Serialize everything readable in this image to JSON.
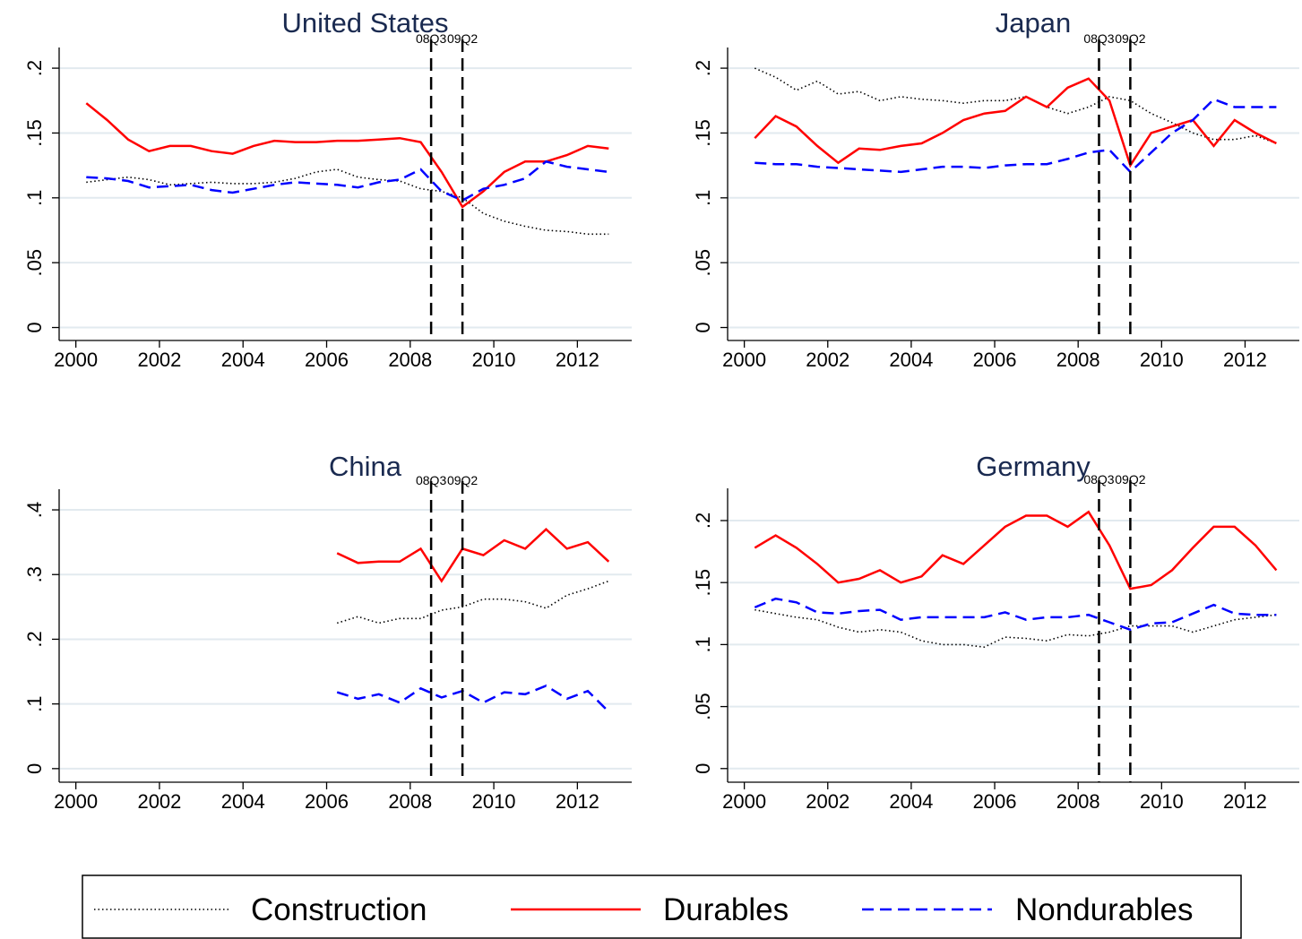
{
  "chart_data": [
    {
      "type": "line",
      "title": "United States",
      "x": [
        2000.25,
        2000.75,
        2001.25,
        2001.75,
        2002.25,
        2002.75,
        2003.25,
        2003.75,
        2004.25,
        2004.75,
        2005.25,
        2005.75,
        2006.25,
        2006.75,
        2007.25,
        2007.75,
        2008.25,
        2008.75,
        2009.25,
        2009.75,
        2010.25,
        2010.75,
        2011.25,
        2011.75,
        2012.25,
        2012.75
      ],
      "series": [
        {
          "name": "Construction",
          "color": "#000000",
          "dash": "dotted",
          "values": [
            0.112,
            0.114,
            0.116,
            0.114,
            0.11,
            0.111,
            0.112,
            0.111,
            0.111,
            0.112,
            0.115,
            0.12,
            0.122,
            0.116,
            0.114,
            0.113,
            0.107,
            0.105,
            0.1,
            0.088,
            0.082,
            0.078,
            0.075,
            0.074,
            0.072,
            0.072
          ]
        },
        {
          "name": "Durables",
          "color": "#ff0000",
          "dash": "solid",
          "values": [
            0.173,
            0.16,
            0.145,
            0.136,
            0.14,
            0.14,
            0.136,
            0.134,
            0.14,
            0.144,
            0.143,
            0.143,
            0.144,
            0.144,
            0.145,
            0.146,
            0.143,
            0.12,
            0.093,
            0.105,
            0.12,
            0.128,
            0.128,
            0.133,
            0.14,
            0.138
          ]
        },
        {
          "name": "Nondurables",
          "color": "#0000ff",
          "dash": "dashed",
          "values": [
            0.116,
            0.115,
            0.113,
            0.108,
            0.109,
            0.11,
            0.106,
            0.104,
            0.107,
            0.11,
            0.112,
            0.111,
            0.11,
            0.108,
            0.112,
            0.114,
            0.122,
            0.105,
            0.098,
            0.107,
            0.11,
            0.115,
            0.128,
            0.124,
            0.122,
            0.12
          ]
        }
      ],
      "xlim": [
        1999.6,
        2013.3
      ],
      "ylim": [
        -0.01,
        0.2125
      ],
      "xticks": [
        2000,
        2002,
        2004,
        2006,
        2008,
        2010,
        2012
      ],
      "yticks": [
        0,
        {
          "value": 0.05,
          "label": ".05"
        },
        {
          "value": 0.1,
          "label": ".1"
        },
        {
          "value": 0.15,
          "label": ".15"
        },
        {
          "value": 0.2,
          "label": ".2"
        }
      ],
      "grid": true,
      "annotations": [
        {
          "x": 2008.5,
          "label": "08Q3"
        },
        {
          "x": 2009.25,
          "label": "09Q2"
        }
      ]
    },
    {
      "type": "line",
      "title": "Japan",
      "x": [
        2000.25,
        2000.75,
        2001.25,
        2001.75,
        2002.25,
        2002.75,
        2003.25,
        2003.75,
        2004.25,
        2004.75,
        2005.25,
        2005.75,
        2006.25,
        2006.75,
        2007.25,
        2007.75,
        2008.25,
        2008.75,
        2009.25,
        2009.75,
        2010.25,
        2010.75,
        2011.25,
        2011.75,
        2012.25,
        2012.75
      ],
      "series": [
        {
          "name": "Construction",
          "color": "#000000",
          "dash": "dotted",
          "values": [
            0.2,
            0.193,
            0.183,
            0.19,
            0.18,
            0.182,
            0.175,
            0.178,
            0.176,
            0.175,
            0.173,
            0.175,
            0.175,
            0.178,
            0.17,
            0.165,
            0.17,
            0.178,
            0.175,
            0.165,
            0.158,
            0.15,
            0.145,
            0.145,
            0.148,
            0.142
          ]
        },
        {
          "name": "Durables",
          "color": "#ff0000",
          "dash": "solid",
          "values": [
            0.146,
            0.163,
            0.155,
            0.14,
            0.127,
            0.138,
            0.137,
            0.14,
            0.142,
            0.15,
            0.16,
            0.165,
            0.167,
            0.178,
            0.17,
            0.185,
            0.192,
            0.175,
            0.125,
            0.15,
            0.155,
            0.16,
            0.14,
            0.16,
            0.15,
            0.142
          ]
        },
        {
          "name": "Nondurables",
          "color": "#0000ff",
          "dash": "dashed",
          "values": [
            0.127,
            0.126,
            0.126,
            0.124,
            0.123,
            0.122,
            0.121,
            0.12,
            0.122,
            0.124,
            0.124,
            0.123,
            0.125,
            0.126,
            0.126,
            0.13,
            0.135,
            0.137,
            0.12,
            0.135,
            0.15,
            0.16,
            0.176,
            0.17,
            0.17,
            0.17
          ]
        }
      ],
      "xlim": [
        1999.6,
        2013.3
      ],
      "ylim": [
        -0.01,
        0.2125
      ],
      "xticks": [
        2000,
        2002,
        2004,
        2006,
        2008,
        2010,
        2012
      ],
      "yticks": [
        0,
        {
          "value": 0.05,
          "label": ".05"
        },
        {
          "value": 0.1,
          "label": ".1"
        },
        {
          "value": 0.15,
          "label": ".15"
        },
        {
          "value": 0.2,
          "label": ".2"
        }
      ],
      "grid": true,
      "annotations": [
        {
          "x": 2008.5,
          "label": "08Q3"
        },
        {
          "x": 2009.25,
          "label": "09Q2"
        }
      ]
    },
    {
      "type": "line",
      "title": "China",
      "x": [
        2000.25,
        2000.75,
        2001.25,
        2001.75,
        2002.25,
        2002.75,
        2003.25,
        2003.75,
        2004.25,
        2004.75,
        2005.25,
        2005.75,
        2006.25,
        2006.75,
        2007.25,
        2007.75,
        2008.25,
        2008.75,
        2009.25,
        2009.75,
        2010.25,
        2010.75,
        2011.25,
        2011.75,
        2012.25,
        2012.75
      ],
      "series": [
        {
          "name": "Construction",
          "color": "#000000",
          "dash": "dotted",
          "values": [
            null,
            null,
            null,
            null,
            null,
            null,
            null,
            null,
            null,
            null,
            null,
            null,
            0.225,
            0.235,
            0.225,
            0.232,
            0.232,
            0.245,
            0.25,
            0.262,
            0.262,
            0.258,
            0.248,
            0.268,
            0.278,
            0.29
          ]
        },
        {
          "name": "Durables",
          "color": "#ff0000",
          "dash": "solid",
          "values": [
            null,
            null,
            null,
            null,
            null,
            null,
            null,
            null,
            null,
            null,
            null,
            null,
            0.333,
            0.318,
            0.32,
            0.32,
            0.34,
            0.29,
            0.34,
            0.33,
            0.353,
            0.34,
            0.37,
            0.34,
            0.35,
            0.32
          ]
        },
        {
          "name": "Nondurables",
          "color": "#0000ff",
          "dash": "dashed",
          "values": [
            null,
            null,
            null,
            null,
            null,
            null,
            null,
            null,
            null,
            null,
            null,
            null,
            0.118,
            0.108,
            0.115,
            0.102,
            0.124,
            0.11,
            0.12,
            0.102,
            0.118,
            0.115,
            0.128,
            0.108,
            0.12,
            0.088
          ]
        }
      ],
      "xlim": [
        1999.6,
        2013.3
      ],
      "ylim": [
        -0.021,
        0.425
      ],
      "xticks": [
        2000,
        2002,
        2004,
        2006,
        2008,
        2010,
        2012
      ],
      "yticks": [
        0,
        {
          "value": 0.1,
          "label": ".1"
        },
        {
          "value": 0.2,
          "label": ".2"
        },
        {
          "value": 0.3,
          "label": ".3"
        },
        {
          "value": 0.4,
          "label": ".4"
        }
      ],
      "grid": true,
      "annotations": [
        {
          "x": 2008.5,
          "label": "08Q3"
        },
        {
          "x": 2009.25,
          "label": "09Q2"
        }
      ]
    },
    {
      "type": "line",
      "title": "Germany",
      "x": [
        2000.25,
        2000.75,
        2001.25,
        2001.75,
        2002.25,
        2002.75,
        2003.25,
        2003.75,
        2004.25,
        2004.75,
        2005.25,
        2005.75,
        2006.25,
        2006.75,
        2007.25,
        2007.75,
        2008.25,
        2008.75,
        2009.25,
        2009.75,
        2010.25,
        2010.75,
        2011.25,
        2011.75,
        2012.25,
        2012.75
      ],
      "series": [
        {
          "name": "Construction",
          "color": "#000000",
          "dash": "dotted",
          "values": [
            0.128,
            0.125,
            0.122,
            0.12,
            0.114,
            0.11,
            0.112,
            0.11,
            0.103,
            0.1,
            0.1,
            0.098,
            0.106,
            0.105,
            0.103,
            0.108,
            0.107,
            0.11,
            0.115,
            0.115,
            0.115,
            0.11,
            0.115,
            0.12,
            0.122,
            0.124
          ]
        },
        {
          "name": "Durables",
          "color": "#ff0000",
          "dash": "solid",
          "values": [
            0.178,
            0.188,
            0.178,
            0.165,
            0.15,
            0.153,
            0.16,
            0.15,
            0.155,
            0.172,
            0.165,
            0.18,
            0.195,
            0.204,
            0.204,
            0.195,
            0.207,
            0.18,
            0.145,
            0.148,
            0.16,
            0.178,
            0.195,
            0.195,
            0.18,
            0.16
          ]
        },
        {
          "name": "Nondurables",
          "color": "#0000ff",
          "dash": "dashed",
          "values": [
            0.13,
            0.137,
            0.134,
            0.126,
            0.125,
            0.127,
            0.128,
            0.12,
            0.122,
            0.122,
            0.122,
            0.122,
            0.126,
            0.12,
            0.122,
            0.122,
            0.124,
            0.118,
            0.112,
            0.117,
            0.118,
            0.125,
            0.132,
            0.125,
            0.124,
            0.124
          ]
        }
      ],
      "xlim": [
        1999.6,
        2013.3
      ],
      "ylim": [
        -0.011,
        0.2224
      ],
      "xticks": [
        2000,
        2002,
        2004,
        2006,
        2008,
        2010,
        2012
      ],
      "yticks": [
        0,
        {
          "value": 0.05,
          "label": ".05"
        },
        {
          "value": 0.1,
          "label": ".1"
        },
        {
          "value": 0.15,
          "label": ".15"
        },
        {
          "value": 0.2,
          "label": ".2"
        }
      ],
      "grid": true,
      "annotations": [
        {
          "x": 2008.5,
          "label": "08Q3"
        },
        {
          "x": 2009.25,
          "label": "09Q2"
        }
      ]
    }
  ]
}
